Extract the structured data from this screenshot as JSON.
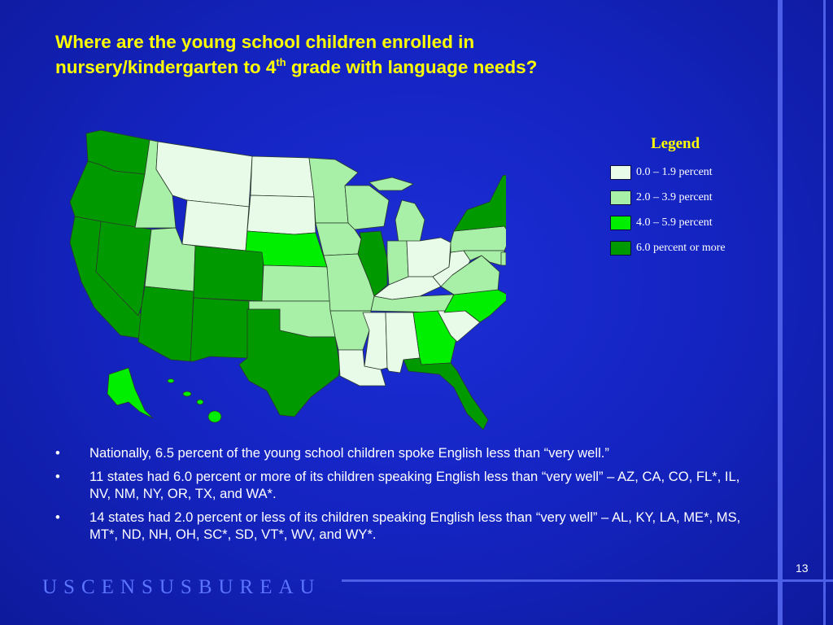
{
  "slide": {
    "title_line1": "Where are the young school children enrolled in",
    "title_line2_pre": "nursery/kindergarten to 4",
    "title_sup": "th",
    "title_line2_post": " grade with language needs?",
    "page_number": "13",
    "footer": "USCENSUSBUREAU"
  },
  "legend": {
    "title": "Legend",
    "items": [
      {
        "label": "0.0 – 1.9 percent",
        "color": "#e8fbe8"
      },
      {
        "label": "2.0 – 3.9 percent",
        "color": "#a8f0a8"
      },
      {
        "label": "4.0 – 5.9 percent",
        "color": "#00ee00"
      },
      {
        "label": "6.0 percent or more",
        "color": "#009a00"
      }
    ]
  },
  "map": {
    "categories": {
      "0.0-1.9": [
        "MT",
        "WY",
        "ND",
        "SD",
        "OH",
        "KY",
        "WV",
        "AL",
        "MS",
        "LA",
        "SC",
        "ME",
        "NH",
        "VT"
      ],
      "2.0-3.9": [
        "ID",
        "UT",
        "MN",
        "IA",
        "MO",
        "KS",
        "OK",
        "AR",
        "WI",
        "MI",
        "IN",
        "TN",
        "VA",
        "PA",
        "MD",
        "DE"
      ],
      "4.0-5.9": [
        "NE",
        "NC",
        "GA",
        "NJ",
        "MA",
        "CT",
        "RI",
        "AK",
        "HI"
      ],
      "6.0+": [
        "WA",
        "OR",
        "CA",
        "NV",
        "AZ",
        "NM",
        "CO",
        "TX",
        "IL",
        "FL",
        "NY"
      ]
    }
  },
  "bullets": [
    "Nationally, 6.5 percent of the young school children spoke English less than “very well.”",
    "11 states had 6.0 percent or more of its children speaking English less than “very well” – AZ, CA, CO, FL*, IL, NV, NM, NY, OR, TX, and WA*.",
    "14 states had 2.0 percent or less of its children speaking English less than “very well” – AL, KY, LA, ME*, MS, MT*, ND, NH, OH, SC*, SD, VT*, WV, and WY*."
  ]
}
